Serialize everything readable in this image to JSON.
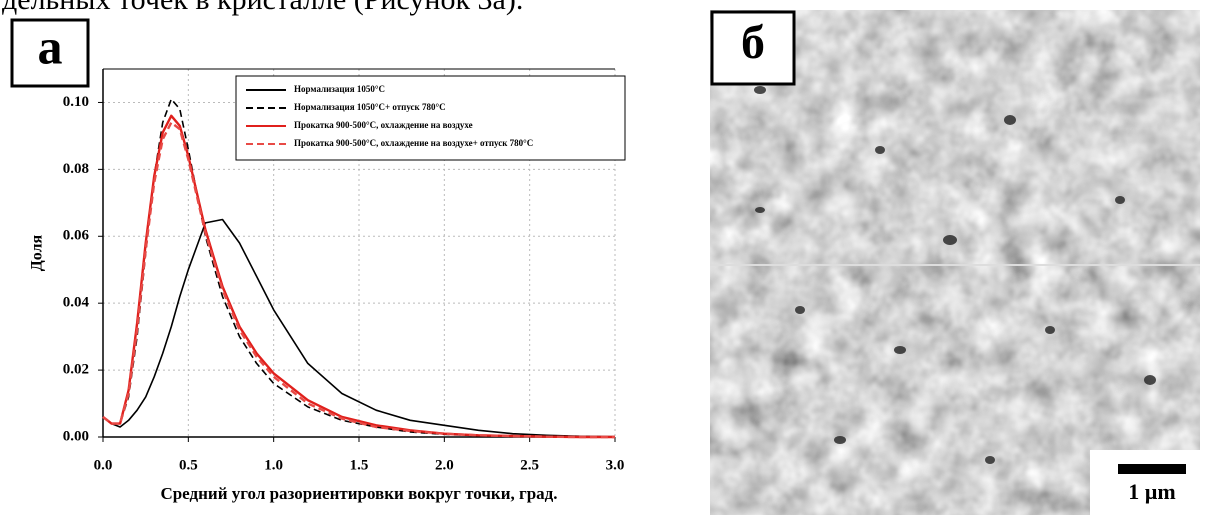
{
  "page_text": "дельных точек в кристалле (Рисунок 3а).",
  "panel_labels": [
    "а",
    "б"
  ],
  "scale_bar": "1 µm",
  "chart_data": {
    "type": "line",
    "xlabel": "Средний угол разориентировки вокруг точки, град.",
    "ylabel": "Доля",
    "xlim": [
      0,
      3
    ],
    "ylim": [
      0,
      0.11
    ],
    "xticks": [
      {
        "value": 0,
        "label": "0.0"
      },
      {
        "value": 0.5,
        "label": "0.5"
      },
      {
        "value": 1,
        "label": "1.0"
      },
      {
        "value": 1.5,
        "label": "1.5"
      },
      {
        "value": 2,
        "label": "2.0"
      },
      {
        "value": 2.5,
        "label": "2.5"
      },
      {
        "value": 3,
        "label": "3.0"
      }
    ],
    "yticks": [
      {
        "value": 0,
        "label": "0.00"
      },
      {
        "value": 0.02,
        "label": "0.02"
      },
      {
        "value": 0.04,
        "label": "0.04"
      },
      {
        "value": 0.06,
        "label": "0.06"
      },
      {
        "value": 0.08,
        "label": "0.08"
      },
      {
        "value": 0.1,
        "label": "0.10"
      }
    ],
    "grid": true,
    "legend": "upper right",
    "x": [
      0,
      0.05,
      0.1,
      0.15,
      0.2,
      0.25,
      0.3,
      0.35,
      0.4,
      0.45,
      0.5,
      0.6,
      0.7,
      0.8,
      0.9,
      1.0,
      1.2,
      1.4,
      1.6,
      1.8,
      2.0,
      2.2,
      2.4,
      2.6,
      2.8,
      3.0
    ],
    "series": [
      {
        "name": "Нормализация 1050°C",
        "color": "#000000",
        "dashed": false,
        "values": [
          0.006,
          0.004,
          0.003,
          0.005,
          0.008,
          0.012,
          0.018,
          0.025,
          0.033,
          0.042,
          0.05,
          0.064,
          0.065,
          0.058,
          0.048,
          0.038,
          0.022,
          0.013,
          0.008,
          0.005,
          0.0035,
          0.002,
          0.001,
          0.0005,
          0.0002,
          0.0001
        ]
      },
      {
        "name": "Нормализация 1050°C+ отпуск 780°C",
        "color": "#000000",
        "dashed": true,
        "values": [
          0.006,
          0.004,
          0.004,
          0.012,
          0.03,
          0.055,
          0.078,
          0.094,
          0.101,
          0.098,
          0.086,
          0.06,
          0.042,
          0.03,
          0.022,
          0.016,
          0.009,
          0.005,
          0.003,
          0.0015,
          0.0008,
          0.0004,
          0.0002,
          0.0001,
          0,
          0
        ]
      },
      {
        "name": "Прокатка 900-500°C, охлаждение на воздухе",
        "color": "#e0201c",
        "dashed": false,
        "values": [
          0.006,
          0.004,
          0.004,
          0.014,
          0.034,
          0.058,
          0.078,
          0.091,
          0.096,
          0.093,
          0.084,
          0.062,
          0.045,
          0.033,
          0.025,
          0.019,
          0.011,
          0.006,
          0.0035,
          0.002,
          0.001,
          0.0005,
          0.0003,
          0.0001,
          0,
          0
        ]
      },
      {
        "name": "Прокатка 900-500°C, охлаждение на воздухе+ отпуск 780°C",
        "color": "#e84a46",
        "dashed": true,
        "values": [
          0.006,
          0.004,
          0.004,
          0.013,
          0.032,
          0.056,
          0.076,
          0.089,
          0.094,
          0.092,
          0.083,
          0.061,
          0.044,
          0.032,
          0.024,
          0.018,
          0.01,
          0.0055,
          0.003,
          0.0018,
          0.001,
          0.0005,
          0.0003,
          0.0001,
          0,
          0
        ]
      }
    ]
  }
}
